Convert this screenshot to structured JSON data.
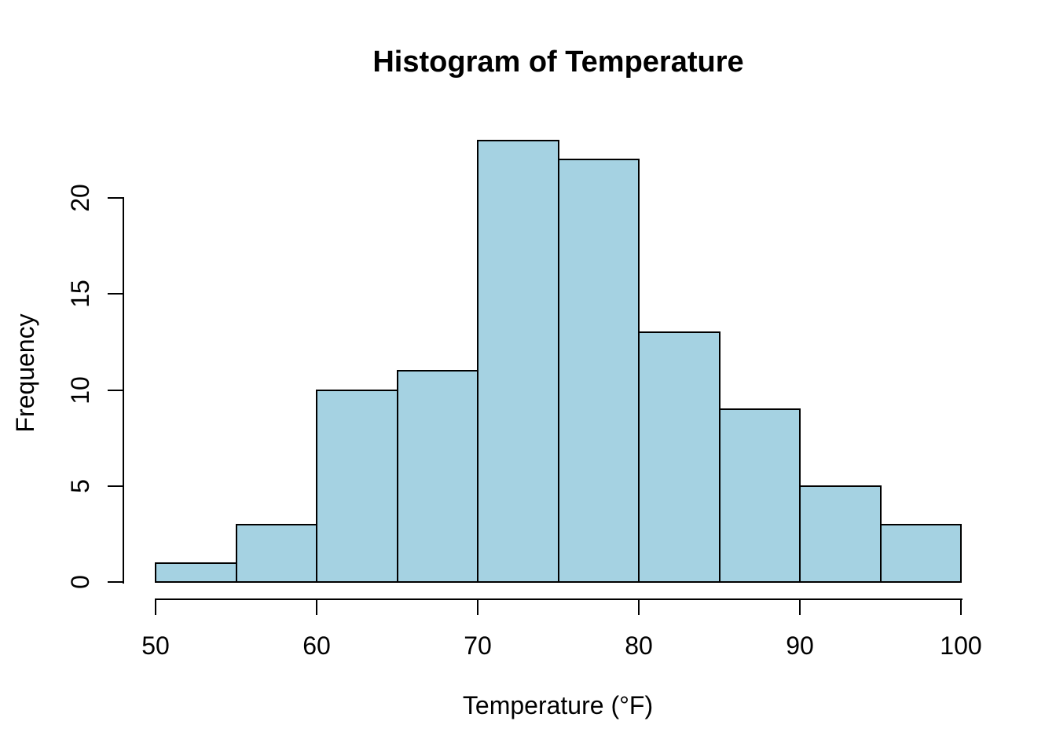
{
  "chart_data": {
    "type": "histogram",
    "title": "Histogram of Temperature",
    "xlabel": "Temperature (°F)",
    "ylabel": "Frequency",
    "bin_edges": [
      50,
      55,
      60,
      65,
      70,
      75,
      80,
      85,
      90,
      95,
      100
    ],
    "counts": [
      1,
      3,
      10,
      11,
      23,
      22,
      13,
      9,
      5,
      3
    ],
    "x_ticks": [
      50,
      60,
      70,
      80,
      90,
      100
    ],
    "y_ticks": [
      0,
      5,
      10,
      15,
      20
    ],
    "xlim": [
      50,
      100
    ],
    "ylim": [
      0,
      20
    ],
    "grid": false,
    "legend": null,
    "colors": {
      "bar_fill": "#A5D2E2",
      "bar_border": "#000000",
      "axis": "#000000",
      "text": "#000000",
      "background": "#FFFFFF"
    }
  }
}
